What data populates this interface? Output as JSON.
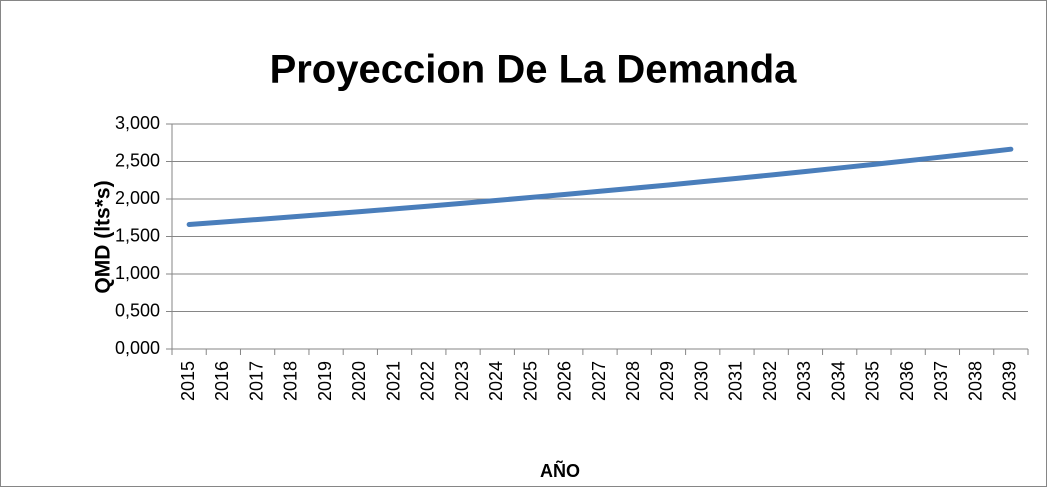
{
  "chart_data": {
    "type": "line",
    "title": "Proyeccion De La Demanda",
    "y_label": "QMD (lts*s)",
    "x_label": "AÑO",
    "categories": [
      "2015",
      "2016",
      "2017",
      "2018",
      "2019",
      "2020",
      "2021",
      "2022",
      "2023",
      "2024",
      "2025",
      "2026",
      "2027",
      "2028",
      "2029",
      "2030",
      "2031",
      "2032",
      "2033",
      "2034",
      "2035",
      "2036",
      "2037",
      "2038",
      "2039"
    ],
    "series": [
      {
        "color": "#4a7ebb",
        "values": [
          1.66,
          1.693,
          1.727,
          1.761,
          1.796,
          1.832,
          1.868,
          1.905,
          1.943,
          1.982,
          2.021,
          2.062,
          2.103,
          2.145,
          2.187,
          2.231,
          2.275,
          2.32,
          2.367,
          2.414,
          2.462,
          2.511,
          2.561,
          2.612,
          2.664
        ]
      }
    ],
    "ylim": [
      0,
      3
    ],
    "yticks": [
      {
        "value": 0,
        "label": "0,000"
      },
      {
        "value": 0.5,
        "label": "0,500"
      },
      {
        "value": 1,
        "label": "1,000"
      },
      {
        "value": 1.5,
        "label": "1,500"
      },
      {
        "value": 2,
        "label": "2,000"
      },
      {
        "value": 2.5,
        "label": "2,500"
      },
      {
        "value": 3,
        "label": "3,000"
      }
    ],
    "grid": true
  }
}
